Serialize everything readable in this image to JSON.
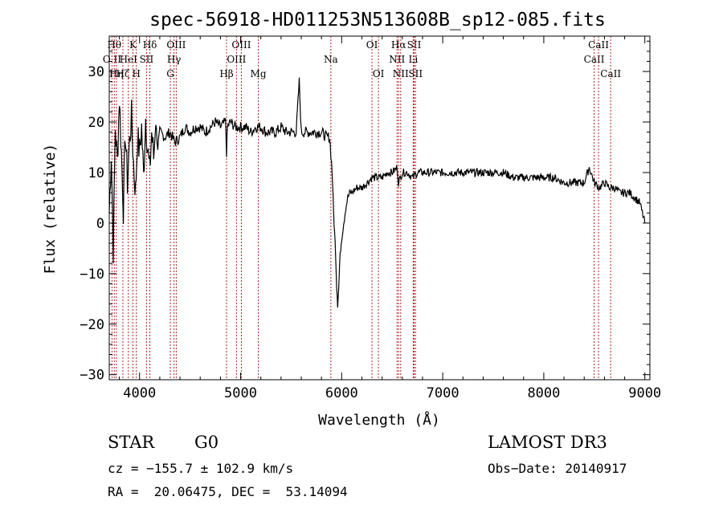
{
  "chart_data": {
    "type": "line",
    "title": "spec-56918-HD011253N513608B_sp12-085.fits",
    "xlabel": "Wavelength (Å)",
    "ylabel": "Flux (relative)",
    "xlim": [
      3700,
      9050
    ],
    "ylim": [
      -31,
      37
    ],
    "xticks": [
      4000,
      5000,
      6000,
      7000,
      8000,
      9000
    ],
    "yticks": [
      -30,
      -20,
      -10,
      0,
      10,
      20,
      30
    ],
    "grid": false,
    "series": [
      {
        "name": "flux",
        "x": [
          3700,
          3720,
          3740,
          3760,
          3780,
          3800,
          3820,
          3840,
          3860,
          3880,
          3900,
          3920,
          3940,
          3960,
          3980,
          4000,
          4020,
          4040,
          4060,
          4080,
          4100,
          4120,
          4140,
          4160,
          4180,
          4200,
          4250,
          4300,
          4350,
          4400,
          4450,
          4500,
          4550,
          4600,
          4650,
          4700,
          4750,
          4800,
          4850,
          4861,
          4870,
          4900,
          4950,
          5000,
          5050,
          5100,
          5150,
          5200,
          5250,
          5300,
          5350,
          5400,
          5450,
          5500,
          5550,
          5580,
          5600,
          5650,
          5700,
          5750,
          5800,
          5850,
          5880,
          5900,
          5910,
          5920,
          5930,
          5940,
          5950,
          5960,
          5970,
          5980,
          5990,
          6000,
          6020,
          6040,
          6060,
          6080,
          6100,
          6150,
          6200,
          6250,
          6300,
          6350,
          6400,
          6450,
          6500,
          6550,
          6563,
          6600,
          6650,
          6700,
          6750,
          6800,
          6850,
          6900,
          6950,
          7000,
          7100,
          7200,
          7300,
          7400,
          7500,
          7600,
          7700,
          7800,
          7900,
          8000,
          8100,
          8200,
          8300,
          8400,
          8450,
          8500,
          8550,
          8600,
          8650,
          8700,
          8750,
          8800,
          8850,
          8900,
          8950,
          9000
        ],
        "y": [
          2,
          14,
          -5,
          19,
          12,
          25,
          14,
          3,
          18,
          8,
          16,
          21,
          12,
          6,
          17,
          14,
          19,
          9,
          21,
          15,
          10,
          18,
          13,
          20,
          15,
          18,
          17,
          18,
          16,
          17,
          19,
          18,
          19,
          19,
          18,
          19,
          20,
          19,
          20,
          14,
          19,
          20,
          19,
          19,
          19,
          18,
          19,
          19,
          18,
          18,
          18,
          19,
          18,
          18,
          18,
          28,
          18,
          18,
          18,
          18,
          18,
          17,
          17,
          12,
          8,
          2,
          -2,
          -6,
          -12,
          -16,
          -13,
          -8,
          -5,
          -3,
          0,
          3,
          5,
          6,
          6,
          7,
          7,
          8,
          9,
          9,
          9,
          10,
          10,
          11,
          8,
          10,
          10,
          9,
          10,
          10,
          10,
          10,
          10,
          10,
          10,
          10,
          10,
          10,
          10,
          10,
          9,
          9,
          9,
          9,
          9,
          8,
          8,
          8,
          11,
          8,
          7,
          8,
          7,
          7,
          6,
          6,
          6,
          5,
          4,
          0
        ]
      }
    ],
    "spectral_lines": [
      {
        "label": "O II",
        "wl": 3727,
        "row": 1
      },
      {
        "label": "Hθ",
        "wl": 3750,
        "row": 0
      },
      {
        "label": "Hη",
        "wl": 3770,
        "row": 2
      },
      {
        "label": "Hζ",
        "wl": 3835,
        "row": 2
      },
      {
        "label": "K",
        "wl": 3934,
        "row": 0
      },
      {
        "label": "HeI",
        "wl": 3889,
        "row": 1
      },
      {
        "label": "SII",
        "wl": 4069,
        "row": 1
      },
      {
        "label": "H",
        "wl": 3968,
        "row": 2
      },
      {
        "label": "Hδ",
        "wl": 4102,
        "row": 0
      },
      {
        "label": "G",
        "wl": 4305,
        "row": 2
      },
      {
        "label": "Hγ",
        "wl": 4341,
        "row": 1
      },
      {
        "label": "OIII",
        "wl": 4363,
        "row": 0
      },
      {
        "label": "Hβ",
        "wl": 4861,
        "row": 2
      },
      {
        "label": "OIII",
        "wl": 4959,
        "row": 1
      },
      {
        "label": "OIII",
        "wl": 5007,
        "row": 0
      },
      {
        "label": "Mg",
        "wl": 5175,
        "row": 2
      },
      {
        "label": "Na",
        "wl": 5893,
        "row": 1
      },
      {
        "label": "OI",
        "wl": 6300,
        "row": 0
      },
      {
        "label": "OI",
        "wl": 6364,
        "row": 2
      },
      {
        "label": "NII",
        "wl": 6548,
        "row": 1
      },
      {
        "label": "Hα",
        "wl": 6563,
        "row": 0
      },
      {
        "label": "NII",
        "wl": 6584,
        "row": 2
      },
      {
        "label": "SII",
        "wl": 6717,
        "row": 0
      },
      {
        "label": "Li",
        "wl": 6708,
        "row": 1
      },
      {
        "label": "SII",
        "wl": 6731,
        "row": 2
      },
      {
        "label": "CaII",
        "wl": 8498,
        "row": 1
      },
      {
        "label": "CaII",
        "wl": 8542,
        "row": 0
      },
      {
        "label": "CaII",
        "wl": 8662,
        "row": 2
      }
    ]
  },
  "info": {
    "class": "STAR",
    "subclass": "G0",
    "survey": "LAMOST DR3",
    "cz": "cz = −155.7 ± 102.9 km/s",
    "obs_date": "Obs−Date: 20140917",
    "radec": "RA =  20.06475, DEC =  53.14094"
  }
}
